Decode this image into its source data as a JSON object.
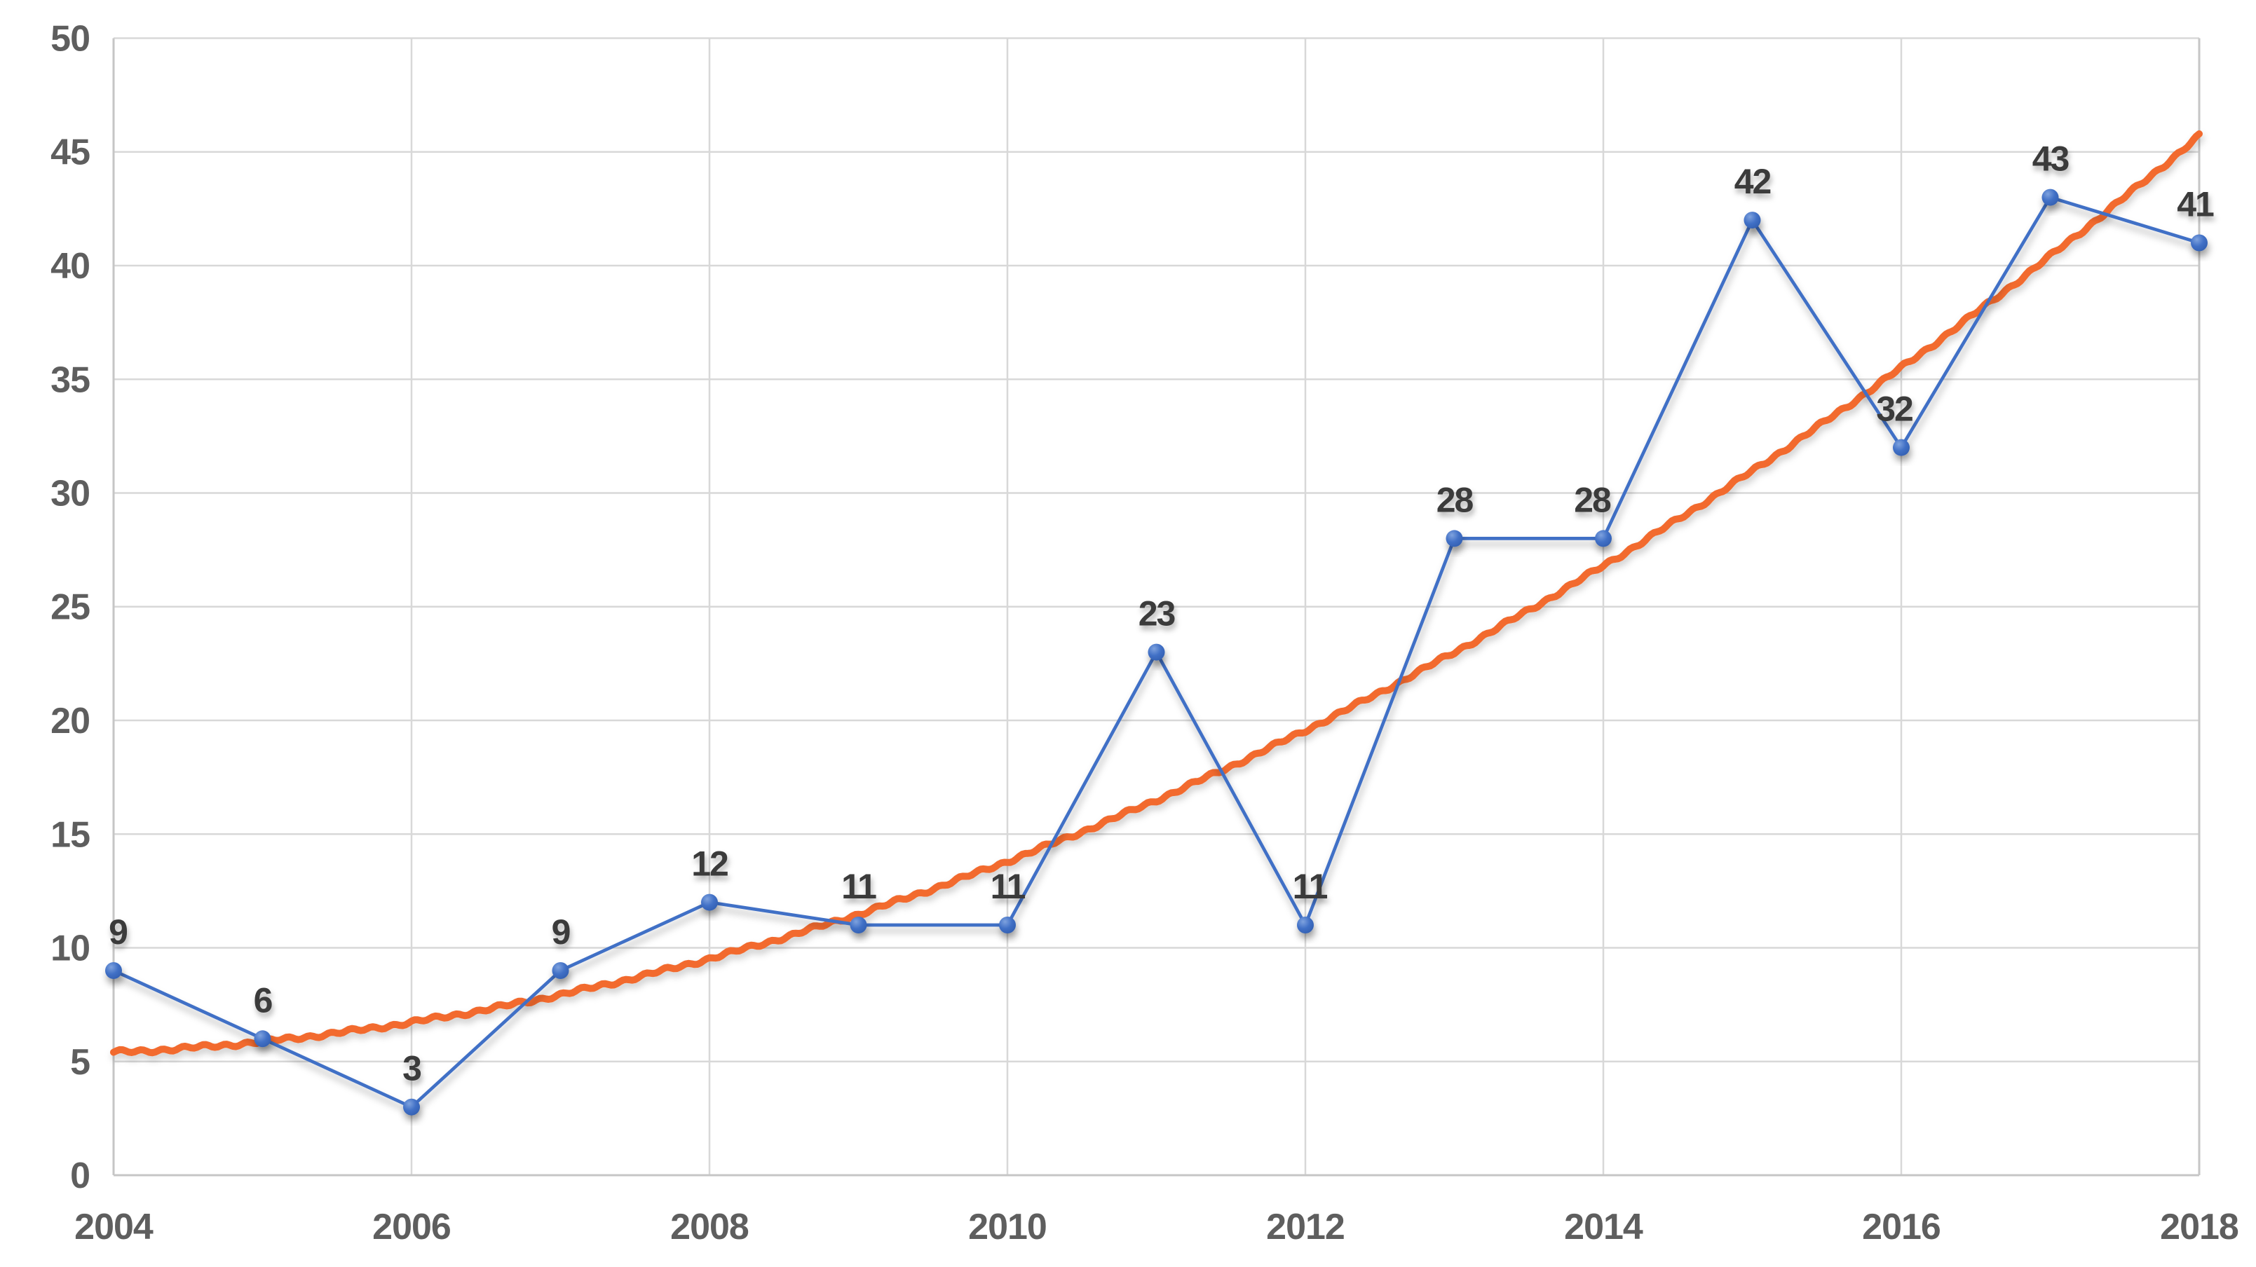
{
  "chart_data": {
    "type": "line",
    "title": "",
    "xlabel": "",
    "ylabel": "",
    "categories": [
      "2004",
      "2005",
      "2006",
      "2007",
      "2008",
      "2009",
      "2010",
      "2011",
      "2012",
      "2013",
      "2014",
      "2015",
      "2016",
      "2017",
      "2018"
    ],
    "series": [
      {
        "name": "values",
        "color": "#4170C6",
        "marker": "circle",
        "values": [
          9,
          6,
          3,
          9,
          12,
          11,
          11,
          23,
          11,
          28,
          28,
          42,
          32,
          43,
          41
        ],
        "data_labels": [
          "9",
          "6",
          "3",
          "9",
          "12",
          "11",
          "11",
          "23",
          "11",
          "28",
          "28",
          "42",
          "32",
          "43",
          "41"
        ],
        "label_dx": [
          6,
          0,
          0,
          0,
          0,
          0,
          0,
          0,
          6,
          0,
          -16,
          0,
          -10,
          0,
          -6
        ]
      }
    ],
    "trendline": {
      "name": "trend",
      "color": "#F26B2D",
      "style": "hand-drawn",
      "fit": "quadratic",
      "coefficients": {
        "a": 5.4,
        "b": 0.2928,
        "c": 0.1847
      },
      "values_by_year": [
        5.4,
        5.9,
        6.7,
        7.9,
        9.5,
        11.5,
        13.8,
        16.5,
        19.6,
        23.0,
        26.8,
        31.0,
        35.5,
        40.4,
        45.7
      ]
    },
    "ylim": [
      0,
      50
    ],
    "y_ticks": [
      "0",
      "5",
      "10",
      "15",
      "20",
      "25",
      "30",
      "35",
      "40",
      "45",
      "50"
    ],
    "x_tick_labels": [
      "2004",
      "2006",
      "2008",
      "2010",
      "2012",
      "2014",
      "2016",
      "2018"
    ],
    "grid": true,
    "legend": "none",
    "colors": {
      "axis_label": "#5E5E5E",
      "data_label": "#3A3A3A",
      "gridline": "#D8D8D8",
      "plot_border": "#C6C6C6",
      "background": "#FFFFFF",
      "marker_highlight": "#7EA2DE",
      "marker_base": "#4170C6",
      "marker_deep": "#3360B2"
    }
  }
}
